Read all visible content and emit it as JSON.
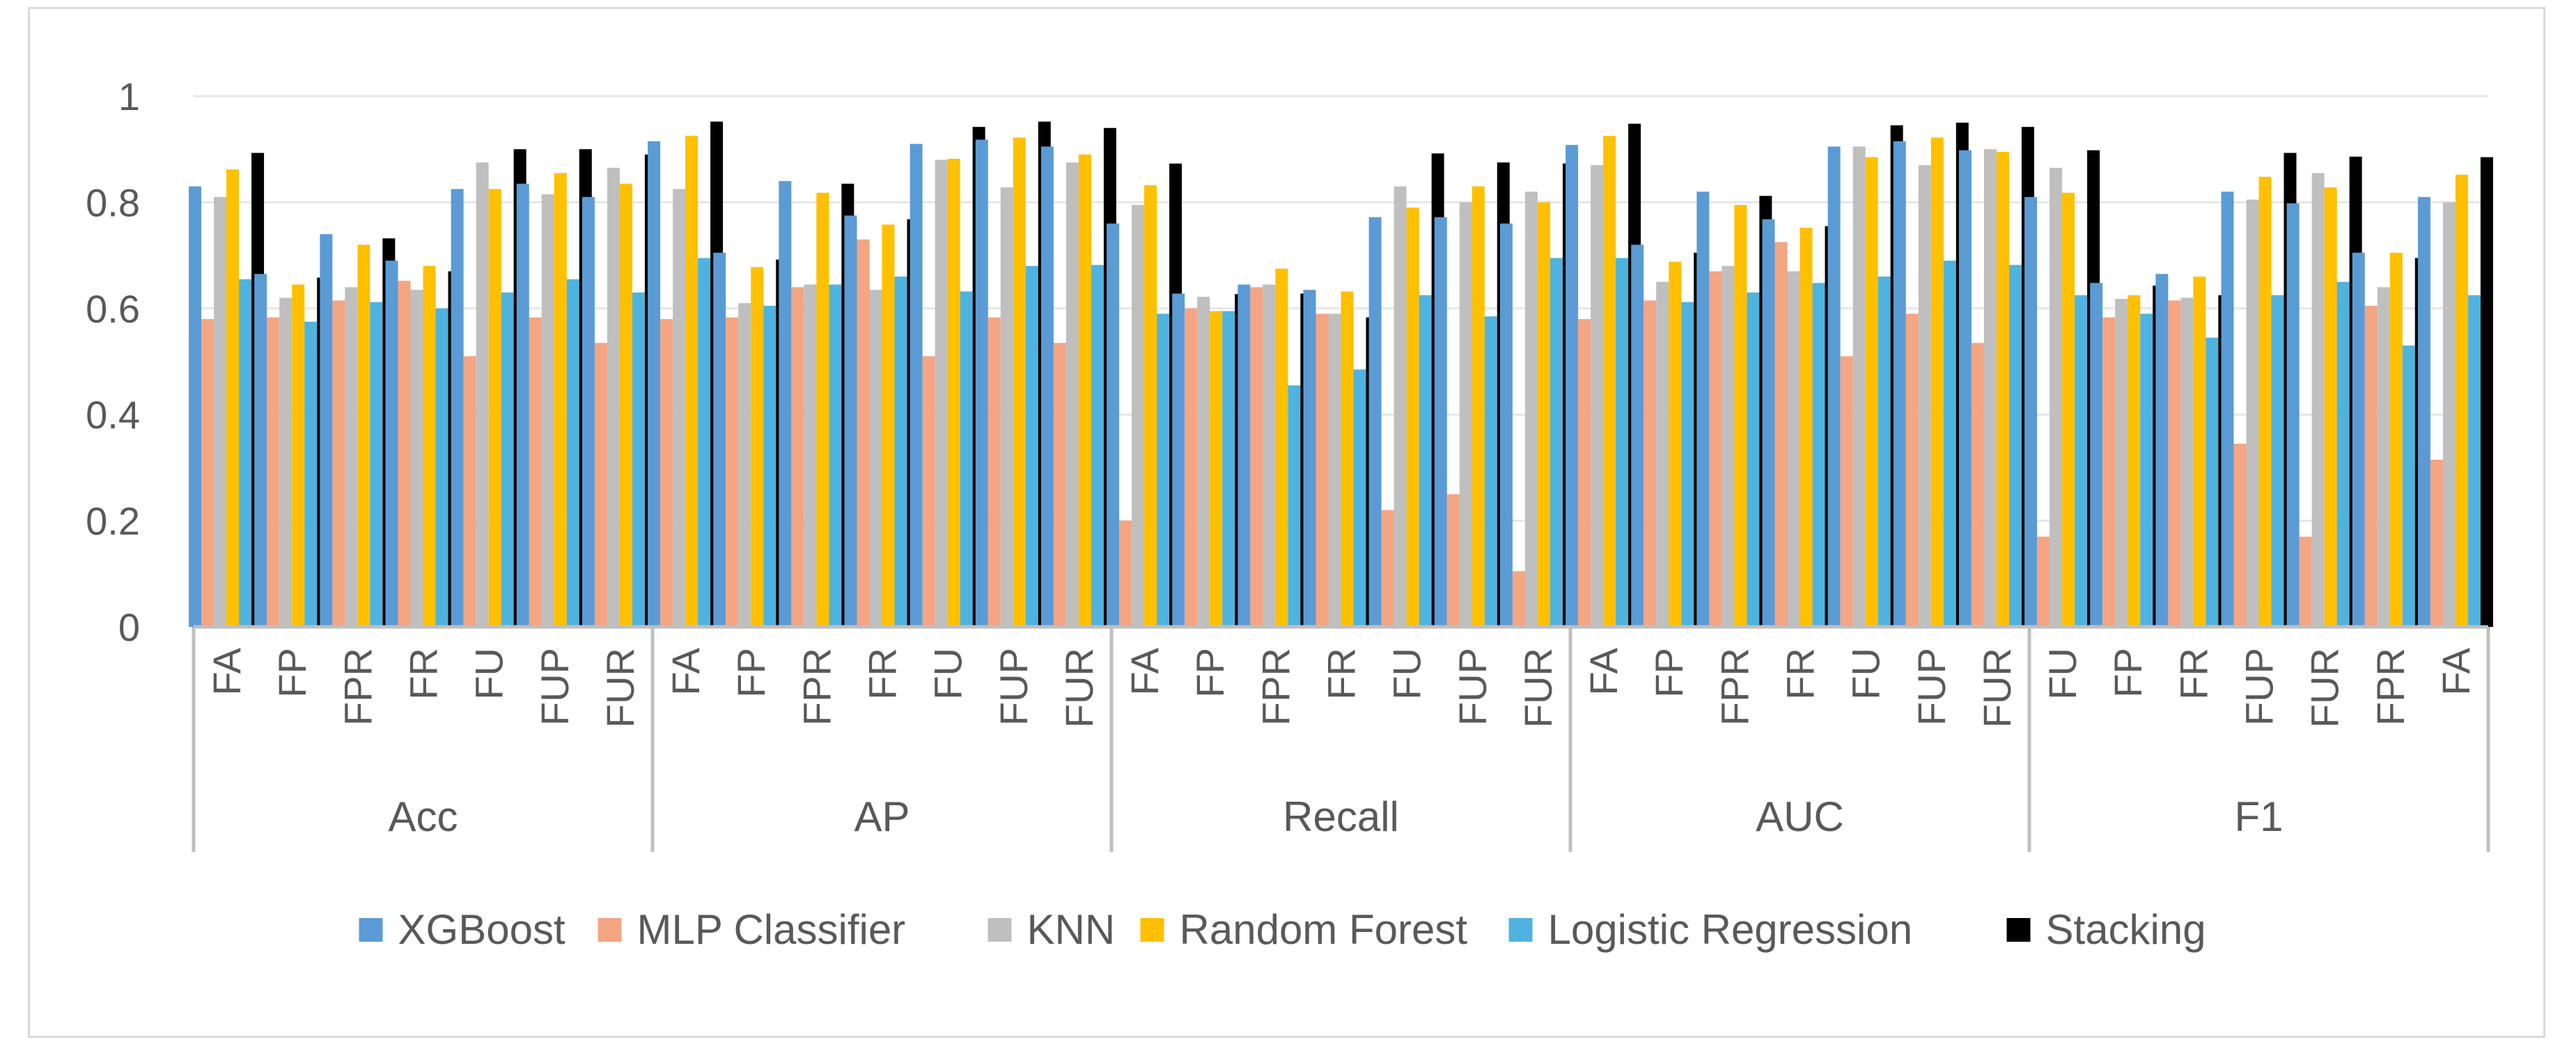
{
  "chart_data": {
    "type": "bar",
    "title": "",
    "xlabel": "",
    "ylabel": "",
    "ylim": [
      0,
      1
    ],
    "yticks": [
      "0",
      "0.2",
      "0.4",
      "0.6",
      "0.8",
      "1"
    ],
    "grid": true,
    "legend_position": "bottom",
    "groups": [
      {
        "name": "Acc",
        "categories": [
          "FA",
          "FP",
          "FPR",
          "FR",
          "FU",
          "FUP",
          "FUR"
        ]
      },
      {
        "name": "AP",
        "categories": [
          "FA",
          "FP",
          "FPR",
          "FR",
          "FU",
          "FUP",
          "FUR"
        ]
      },
      {
        "name": "Recall",
        "categories": [
          "FA",
          "FP",
          "FPR",
          "FR",
          "FU",
          "FUP",
          "FUR"
        ]
      },
      {
        "name": "AUC",
        "categories": [
          "FA",
          "FP",
          "FPR",
          "FR",
          "FU",
          "FUP",
          "FUR"
        ]
      },
      {
        "name": "F1",
        "categories": [
          "FU",
          "FP",
          "FR",
          "FUP",
          "FUR",
          "FPR",
          "FA"
        ]
      }
    ],
    "series": [
      {
        "name": "XGBoost",
        "color": "#5b9bd5",
        "values": [
          0.83,
          0.665,
          0.74,
          0.69,
          0.825,
          0.835,
          0.81,
          0.915,
          0.705,
          0.84,
          0.775,
          0.91,
          0.918,
          0.905,
          0.76,
          0.628,
          0.645,
          0.635,
          0.772,
          0.772,
          0.76,
          0.908,
          0.72,
          0.82,
          0.768,
          0.905,
          0.915,
          0.898,
          0.81,
          0.648,
          0.665,
          0.82,
          0.798,
          0.705,
          0.81
        ]
      },
      {
        "name": "MLP Classifier",
        "color": "#f4a582",
        "values": [
          0.58,
          0.583,
          0.615,
          0.652,
          0.51,
          0.583,
          0.535,
          0.58,
          0.583,
          0.64,
          0.73,
          0.51,
          0.583,
          0.535,
          0.2,
          0.6,
          0.64,
          0.59,
          0.22,
          0.25,
          0.105,
          0.58,
          0.615,
          0.67,
          0.725,
          0.51,
          0.59,
          0.535,
          0.17,
          0.583,
          0.615,
          0.345,
          0.17,
          0.605,
          0.315
        ]
      },
      {
        "name": "KNN",
        "color": "#bfbfbf",
        "values": [
          0.81,
          0.62,
          0.64,
          0.635,
          0.875,
          0.815,
          0.865,
          0.825,
          0.61,
          0.645,
          0.635,
          0.88,
          0.828,
          0.875,
          0.795,
          0.622,
          0.645,
          0.59,
          0.83,
          0.8,
          0.82,
          0.87,
          0.65,
          0.68,
          0.67,
          0.905,
          0.87,
          0.9,
          0.865,
          0.618,
          0.62,
          0.805,
          0.855,
          0.64,
          0.8
        ]
      },
      {
        "name": "Random Forest",
        "color": "#ffc000",
        "values": [
          0.862,
          0.645,
          0.72,
          0.68,
          0.825,
          0.855,
          0.835,
          0.925,
          0.678,
          0.818,
          0.758,
          0.882,
          0.922,
          0.89,
          0.832,
          0.595,
          0.675,
          0.632,
          0.79,
          0.83,
          0.8,
          0.925,
          0.688,
          0.795,
          0.752,
          0.885,
          0.922,
          0.895,
          0.818,
          0.625,
          0.66,
          0.848,
          0.828,
          0.705,
          0.852
        ]
      },
      {
        "name": "Logistic Regression",
        "color": "#4fb3e0",
        "values": [
          0.655,
          0.575,
          0.612,
          0.6,
          0.63,
          0.655,
          0.63,
          0.695,
          0.605,
          0.645,
          0.66,
          0.632,
          0.68,
          0.682,
          0.59,
          0.595,
          0.455,
          0.485,
          0.625,
          0.585,
          0.695,
          0.695,
          0.612,
          0.63,
          0.648,
          0.66,
          0.69,
          0.682,
          0.625,
          0.59,
          0.545,
          0.625,
          0.65,
          0.53,
          0.625
        ]
      },
      {
        "name": "Stacking",
        "color": "#000000",
        "values": [
          0.893,
          0.658,
          0.732,
          0.67,
          0.9,
          0.9,
          0.89,
          0.952,
          0.692,
          0.835,
          0.768,
          0.942,
          0.952,
          0.94,
          0.873,
          0.627,
          0.628,
          0.583,
          0.892,
          0.875,
          0.873,
          0.948,
          0.705,
          0.812,
          0.755,
          0.945,
          0.95,
          0.942,
          0.898,
          0.643,
          0.625,
          0.893,
          0.886,
          0.695,
          0.885
        ]
      }
    ]
  }
}
